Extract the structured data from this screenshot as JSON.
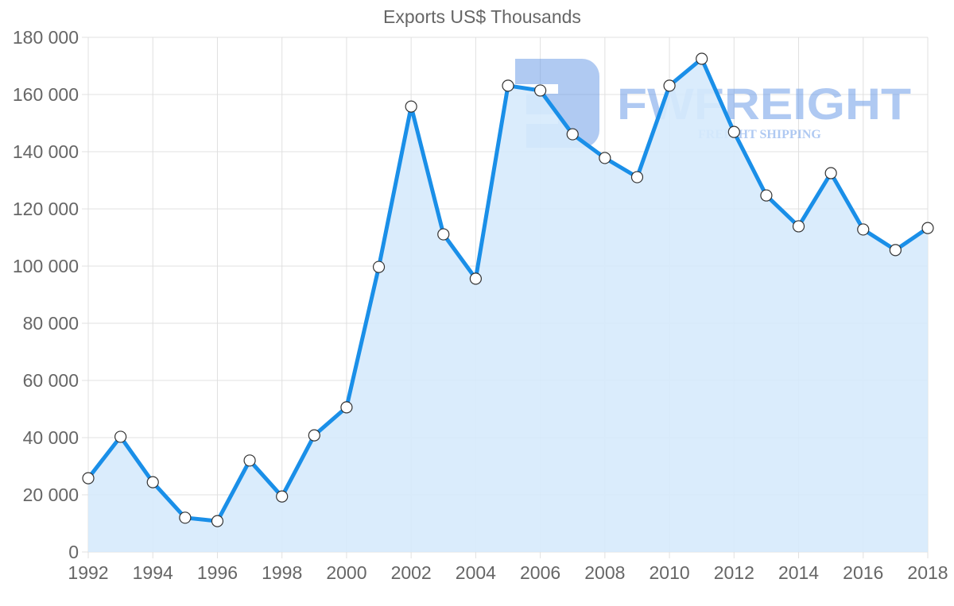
{
  "chart_data": {
    "type": "area",
    "title": "Exports US$ Thousands",
    "xlabel": "",
    "ylabel": "",
    "x": [
      1992,
      1993,
      1994,
      1995,
      1996,
      1997,
      1998,
      1999,
      2000,
      2001,
      2002,
      2003,
      2004,
      2005,
      2006,
      2007,
      2008,
      2009,
      2010,
      2011,
      2012,
      2013,
      2014,
      2015,
      2016,
      2017,
      2018
    ],
    "series": [
      {
        "name": "Exports US$ Thousands",
        "values": [
          25800,
          40300,
          24400,
          12000,
          10800,
          32000,
          19400,
          40800,
          50600,
          99700,
          155800,
          111100,
          95600,
          163100,
          161400,
          146100,
          137800,
          131100,
          163100,
          172500,
          146900,
          124700,
          113900,
          132500,
          112800,
          105600,
          113300
        ]
      }
    ],
    "ylim": [
      0,
      180000
    ],
    "y_ticks": [
      "0",
      "20 000",
      "40 000",
      "60 000",
      "80 000",
      "100 000",
      "120 000",
      "140 000",
      "160 000",
      "180 000"
    ],
    "x_ticks": [
      "1992",
      "1994",
      "1996",
      "1998",
      "2000",
      "2002",
      "2004",
      "2006",
      "2008",
      "2010",
      "2012",
      "2014",
      "2016",
      "2018"
    ],
    "grid": true,
    "legend": "none",
    "colors": {
      "line": "#1a8fe8",
      "fill": "#d6eafc",
      "point_fill": "#ffffff",
      "point_stroke": "#333333",
      "grid": "#e0e0e0"
    }
  },
  "watermark": {
    "brand": "FWFREIGHT",
    "tagline": "FREIGHT SHIPPING",
    "color": "#6f9ee8"
  }
}
